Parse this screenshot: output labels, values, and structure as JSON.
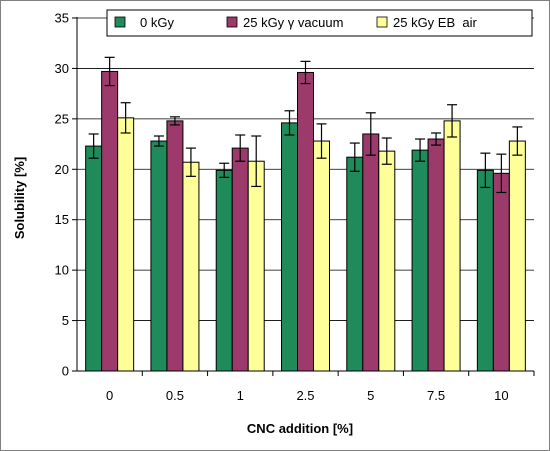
{
  "chart_data": {
    "type": "bar",
    "title": "",
    "xlabel": "CNC addition [%]",
    "ylabel": "Solubility [%]",
    "ylim": [
      0,
      35
    ],
    "yticks": [
      0,
      5,
      10,
      15,
      20,
      25,
      30,
      35
    ],
    "categories": [
      "0",
      "0.5",
      "1",
      "2.5",
      "5",
      "7.5",
      "10"
    ],
    "grid": true,
    "legend_position": "top",
    "series": [
      {
        "name": "0 kGy",
        "color": "#1f8a5a",
        "values": [
          22.3,
          22.8,
          19.9,
          24.6,
          21.2,
          21.9,
          19.9
        ],
        "errors": [
          1.2,
          0.5,
          0.7,
          1.2,
          1.4,
          1.1,
          1.7
        ]
      },
      {
        "name": "25 kGy γ vacuum",
        "color": "#9b3a6b",
        "values": [
          29.7,
          24.8,
          22.1,
          29.6,
          23.5,
          23.0,
          19.6
        ],
        "errors": [
          1.4,
          0.4,
          1.3,
          1.1,
          2.1,
          0.6,
          1.9
        ]
      },
      {
        "name": "25 kGy EB  air",
        "color": "#ffff99",
        "values": [
          25.1,
          20.7,
          20.8,
          22.8,
          21.8,
          24.8,
          22.8
        ],
        "errors": [
          1.5,
          1.4,
          2.5,
          1.7,
          1.3,
          1.6,
          1.4
        ]
      }
    ]
  }
}
